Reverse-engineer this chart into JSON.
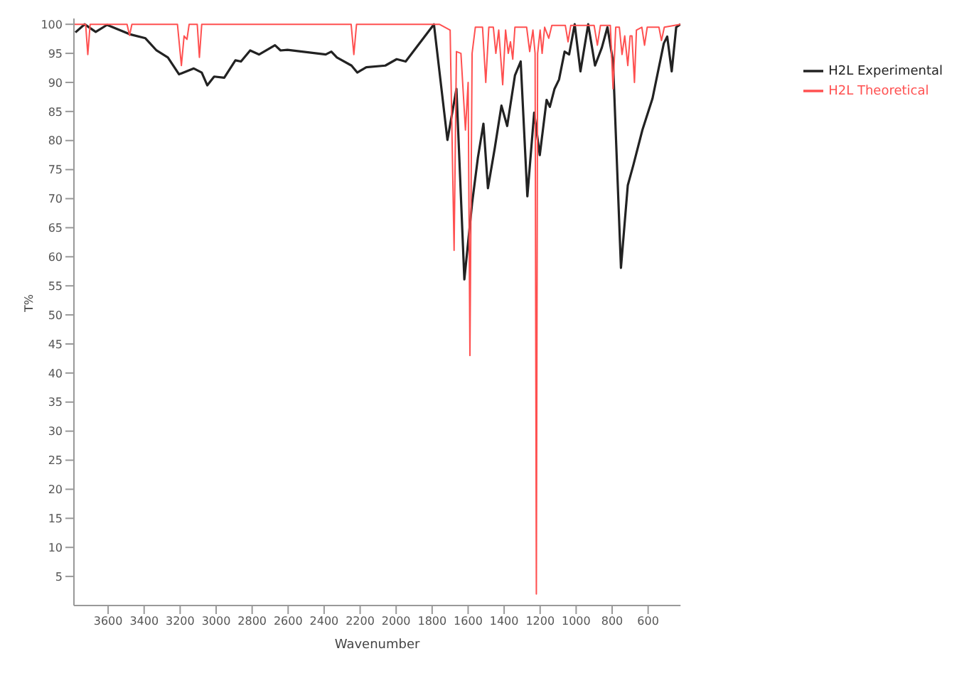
{
  "chart_data": {
    "type": "line",
    "xlabel": "Wavenumber",
    "ylabel": "T%",
    "xlim": [
      3790,
      420
    ],
    "ylim": [
      0,
      101
    ],
    "xticks": [
      3600,
      3400,
      3200,
      3000,
      2800,
      2600,
      2400,
      2200,
      2000,
      1800,
      1600,
      1400,
      1200,
      1000,
      800,
      600
    ],
    "yticks": [
      5,
      10,
      15,
      20,
      25,
      30,
      35,
      40,
      45,
      50,
      55,
      60,
      65,
      70,
      75,
      80,
      85,
      90,
      95,
      100
    ],
    "grid": false,
    "legend": "right",
    "marker": "none",
    "line_style": "solid",
    "series": [
      {
        "name": "H2L Experimental",
        "color": "#222222",
        "x": [
          3782,
          3731,
          3669,
          3606,
          3481,
          3393,
          3331,
          3268,
          3206,
          3124,
          3080,
          3049,
          3011,
          2955,
          2893,
          2862,
          2811,
          2761,
          2673,
          2642,
          2604,
          2391,
          2360,
          2329,
          2248,
          2216,
          2166,
          2060,
          1997,
          1947,
          1790,
          1715,
          1665,
          1621,
          1578,
          1546,
          1515,
          1490,
          1452,
          1415,
          1383,
          1340,
          1308,
          1271,
          1233,
          1202,
          1164,
          1146,
          1120,
          1095,
          1064,
          1039,
          1008,
          976,
          933,
          895,
          857,
          826,
          795,
          751,
          713,
          682,
          632,
          576,
          513,
          494,
          469,
          444,
          420
        ],
        "values": [
          98.6,
          100,
          98.7,
          99.9,
          98.3,
          97.6,
          95.5,
          94.3,
          91.4,
          92.4,
          91.7,
          89.5,
          91,
          90.8,
          93.8,
          93.6,
          95.5,
          94.8,
          96.4,
          95.5,
          95.6,
          94.8,
          95.3,
          94.3,
          92.9,
          91.7,
          92.6,
          92.9,
          94,
          93.6,
          100,
          80.1,
          88.9,
          56.1,
          69.2,
          77,
          82.9,
          71.8,
          78.7,
          86,
          82.5,
          91.2,
          93.6,
          70.4,
          84.8,
          77.5,
          87,
          85.8,
          88.9,
          90.5,
          95.3,
          94.8,
          100,
          91.9,
          100,
          92.9,
          96,
          99.5,
          93.6,
          58.1,
          72.3,
          75.8,
          81.8,
          87.2,
          96.7,
          97.9,
          91.9,
          99.5,
          100
        ]
      },
      {
        "name": "H2L Theoretical",
        "color": "#ff5050",
        "x": [
          3790,
          3725,
          3713,
          3700,
          3495,
          3481,
          3468,
          3215,
          3193,
          3178,
          3162,
          3150,
          3105,
          3093,
          3080,
          2250,
          2235,
          2220,
          1760,
          1700,
          1678,
          1665,
          1640,
          1615,
          1600,
          1590,
          1578,
          1560,
          1520,
          1502,
          1485,
          1460,
          1446,
          1430,
          1408,
          1392,
          1377,
          1365,
          1352,
          1340,
          1275,
          1258,
          1240,
          1228,
          1221,
          1214,
          1200,
          1189,
          1175,
          1152,
          1135,
          1060,
          1045,
          1030,
          900,
          882,
          865,
          810,
          795,
          780,
          760,
          745,
          730,
          713,
          700,
          690,
          676,
          665,
          635,
          620,
          605,
          540,
          526,
          510,
          420
        ],
        "values": [
          100,
          100,
          94.8,
          100,
          100,
          98.1,
          100,
          100,
          92.9,
          98,
          97.4,
          100,
          100,
          94.3,
          100,
          100,
          94.8,
          100,
          100,
          99,
          61.1,
          95.3,
          95,
          81.8,
          90,
          43,
          95,
          99.5,
          99.5,
          90,
          99.5,
          99.5,
          95,
          99,
          89.6,
          99,
          95,
          97,
          94,
          99.5,
          99.5,
          95.3,
          99,
          95,
          2,
          95,
          99,
          95,
          99.5,
          97.6,
          99.8,
          99.8,
          97,
          99.8,
          99.8,
          96.4,
          99.8,
          99.8,
          88.9,
          99.5,
          99.5,
          94.8,
          98,
          92.9,
          98,
          98,
          90,
          99,
          99.5,
          96.4,
          99.5,
          99.5,
          97.2,
          99.5,
          100
        ]
      }
    ]
  }
}
